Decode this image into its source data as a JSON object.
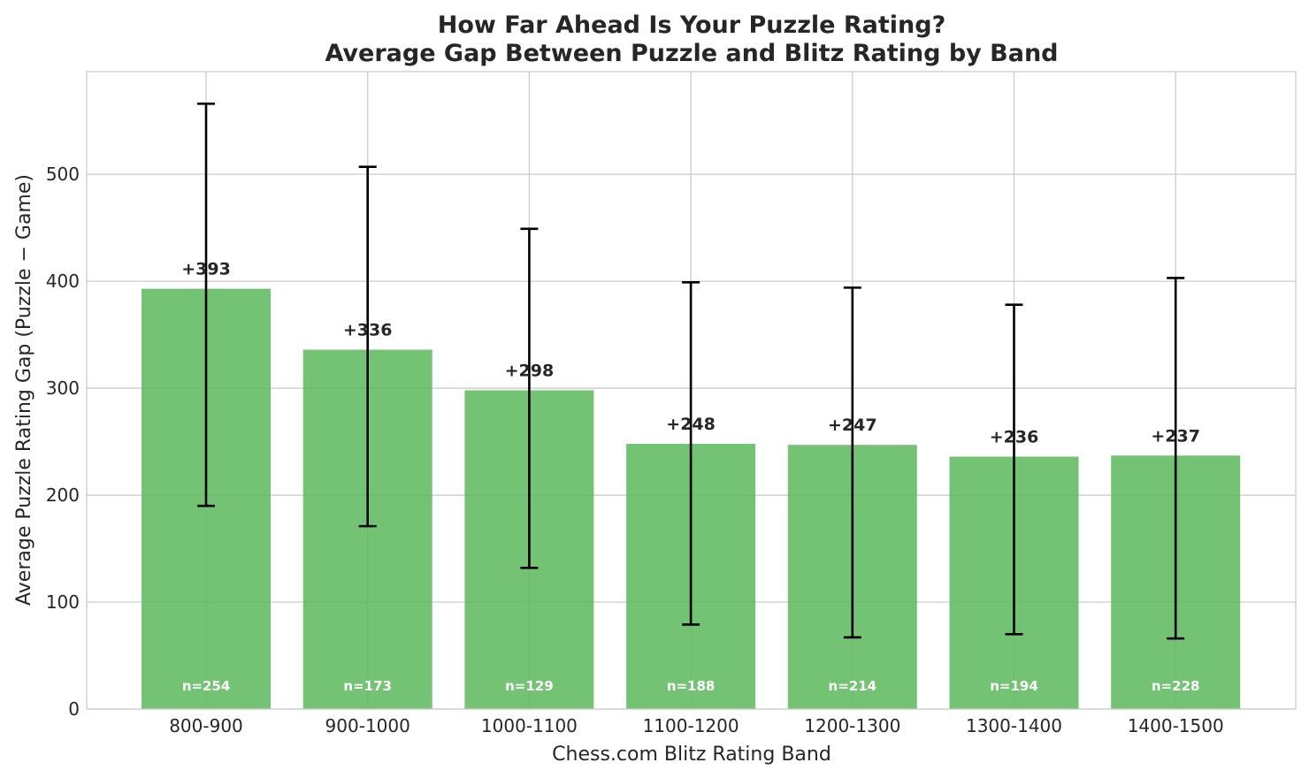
{
  "chart_data": {
    "type": "bar",
    "title_line1": "How Far Ahead Is Your Puzzle Rating?",
    "title_line2": "Average Gap Between Puzzle and Blitz Rating by Band",
    "xlabel": "Chess.com Blitz Rating Band",
    "ylabel": "Average Puzzle Rating Gap (Puzzle − Game)",
    "categories": [
      "800-900",
      "900-1000",
      "1000-1100",
      "1100-1200",
      "1200-1300",
      "1300-1400",
      "1400-1500"
    ],
    "values": [
      393,
      336,
      298,
      248,
      247,
      236,
      237
    ],
    "value_labels": [
      "+393",
      "+336",
      "+298",
      "+248",
      "+247",
      "+236",
      "+237"
    ],
    "error_low": [
      190,
      171,
      132,
      79,
      67,
      70,
      66
    ],
    "error_high": [
      566,
      507,
      449,
      399,
      394,
      378,
      403
    ],
    "n_labels": [
      "n=254",
      "n=173",
      "n=129",
      "n=188",
      "n=214",
      "n=194",
      "n=228"
    ],
    "yticks": [
      0,
      100,
      200,
      300,
      400,
      500
    ],
    "ytick_labels": [
      "0",
      "100",
      "200",
      "300",
      "400",
      "500"
    ],
    "ylim": [
      0,
      596
    ],
    "grid": true,
    "colors": {
      "bar": "#5cb85c",
      "error": "#000000",
      "grid": "#cccccc",
      "text": "#262626"
    }
  }
}
